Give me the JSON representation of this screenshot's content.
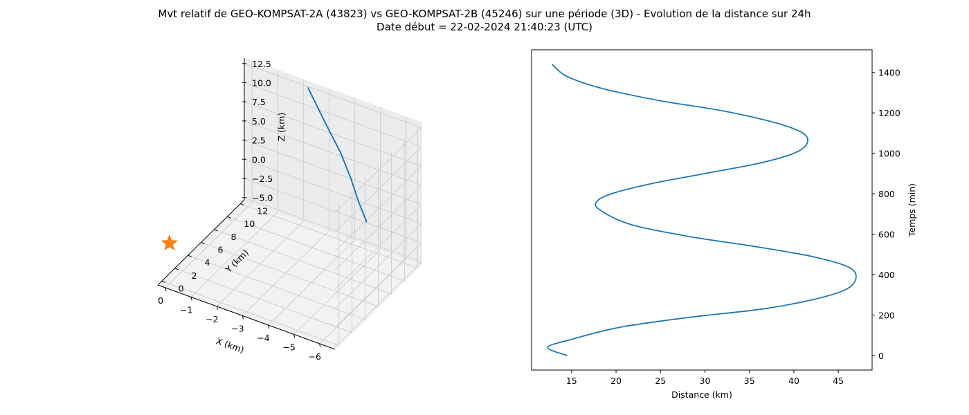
{
  "figure": {
    "title_line1": "Mvt relatif de GEO-KOMPSAT-2A (43823) vs GEO-KOMPSAT-2B (45246) sur une période (3D) - Evolution de la distance sur 24h",
    "title_line2": "Date début = 22-02-2024 21:40:23 (UTC)"
  },
  "chart_data": [
    {
      "type": "line3d",
      "xlabel": "X (km)",
      "ylabel": "Y (km)",
      "zlabel": "Z (km)",
      "xlim": [
        -6.6,
        0.3
      ],
      "ylim": [
        -0.6,
        12.6
      ],
      "zlim": [
        -5.3,
        13.2
      ],
      "xticks": [
        -6,
        -5,
        -4,
        -3,
        -2,
        -1,
        0
      ],
      "xtick_labels": [
        "−6",
        "−5",
        "−4",
        "−3",
        "−2",
        "−1",
        "0"
      ],
      "yticks": [
        0,
        2,
        4,
        6,
        8,
        10,
        12
      ],
      "ytick_labels": [
        "0",
        "2",
        "4",
        "6",
        "8",
        "10",
        "12"
      ],
      "zticks": [
        -5,
        -2.5,
        0,
        2.5,
        5,
        7.5,
        10,
        12.5
      ],
      "ztick_labels": [
        "−5.0",
        "−2.5",
        "0.0",
        "2.5",
        "5.0",
        "7.5",
        "10.0",
        "12.5"
      ],
      "grid": true,
      "line_color": "#1f77b4",
      "marker_color": "#ff7f0e",
      "trajectory": {
        "x": [
          -5.0,
          -4.6,
          -4.2,
          -3.7,
          -3.0,
          -2.2
        ],
        "y": [
          10.5,
          10.8,
          11.2,
          11.6,
          12.0,
          12.5
        ],
        "z": [
          0.0,
          2.0,
          4.2,
          6.6,
          9.3,
          12.5
        ]
      },
      "marker": {
        "x": 0.0,
        "y": 0.0,
        "z": 0.0,
        "symbol": "star"
      }
    },
    {
      "type": "line",
      "xlabel": "Distance (km)",
      "ylabel": "Temps (min)",
      "xlim": [
        10.5,
        48.8
      ],
      "ylim": [
        -72,
        1512
      ],
      "xticks": [
        15,
        20,
        25,
        30,
        35,
        40,
        45
      ],
      "yticks": [
        0,
        200,
        400,
        600,
        800,
        1000,
        1200,
        1400
      ],
      "grid": false,
      "line_color": "#1f77b4",
      "series": [
        {
          "x": [
            14.5,
            12.3,
            15.0,
            20.5,
            28.5,
            36.5,
            42.5,
            46.0,
            47.0,
            46.0,
            42.0,
            35.5,
            28.0,
            21.5,
            18.2,
            17.8,
            19.5,
            24.0,
            30.0,
            36.0,
            40.0,
            41.5,
            41.0,
            38.0,
            32.0,
            25.0,
            18.5,
            14.5,
            12.8
          ],
          "y": [
            0,
            40,
            80,
            140,
            190,
            230,
            280,
            330,
            390,
            440,
            490,
            540,
            590,
            650,
            720,
            760,
            800,
            850,
            900,
            950,
            1000,
            1050,
            1100,
            1150,
            1210,
            1260,
            1320,
            1380,
            1440
          ]
        }
      ]
    }
  ]
}
